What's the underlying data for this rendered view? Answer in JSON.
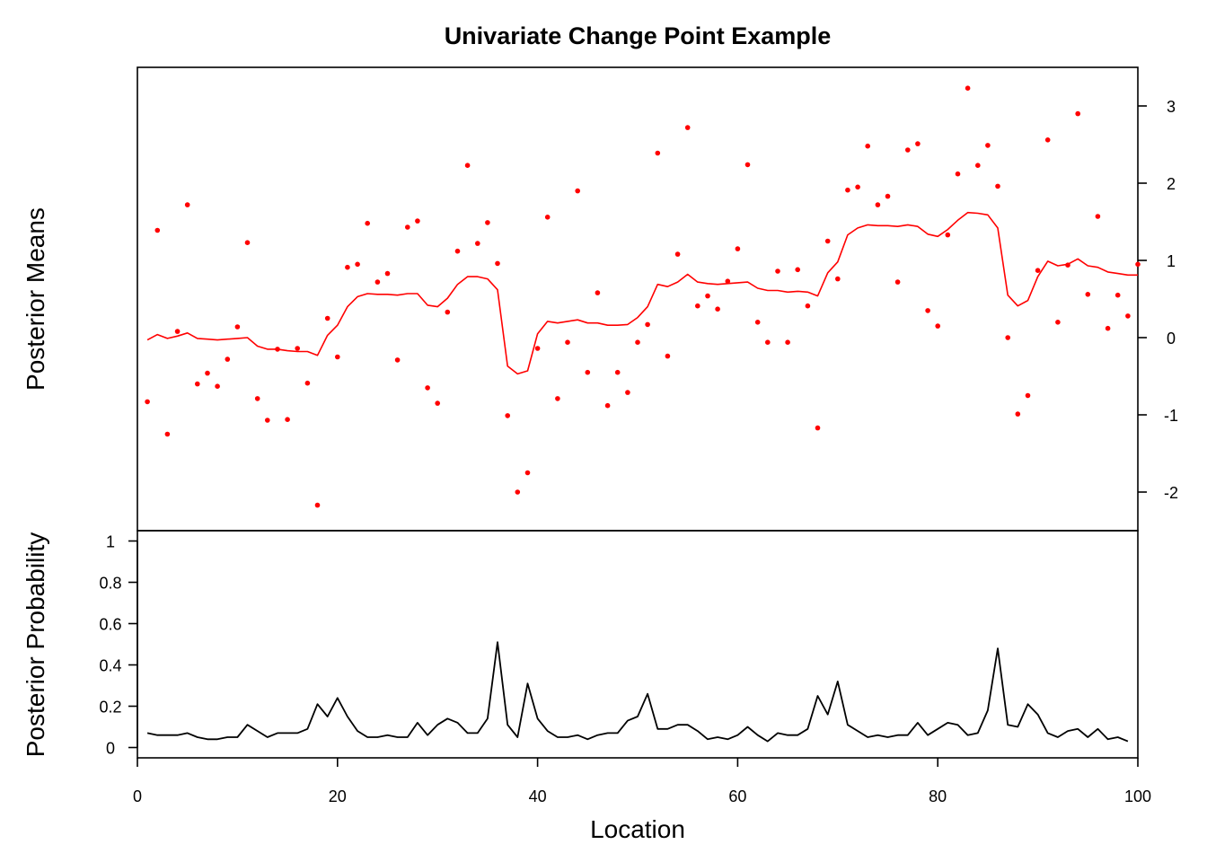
{
  "chart_data": [
    {
      "type": "scatter",
      "title": "Univariate Change Point Example",
      "ylabel": "Posterior Means",
      "xlabel": "",
      "xlim": [
        0,
        100
      ],
      "ylim": [
        -2.5,
        3.5
      ],
      "y_axis_side": "right",
      "yticks": [
        -2,
        -1,
        0,
        1,
        2,
        3
      ],
      "colors": {
        "points": "#ff0000",
        "line": "#ff0000"
      },
      "series": [
        {
          "kind": "points",
          "x": [
            1,
            2,
            3,
            4,
            5,
            6,
            7,
            8,
            9,
            10,
            11,
            12,
            13,
            14,
            15,
            16,
            17,
            18,
            19,
            20,
            21,
            22,
            23,
            24,
            25,
            26,
            27,
            28,
            29,
            30,
            31,
            32,
            33,
            34,
            35,
            36,
            37,
            38,
            39,
            40,
            41,
            42,
            43,
            44,
            45,
            46,
            47,
            48,
            49,
            50,
            51,
            52,
            53,
            54,
            55,
            56,
            57,
            58,
            59,
            60,
            61,
            62,
            63,
            64,
            65,
            66,
            67,
            68,
            69,
            70,
            71,
            72,
            73,
            74,
            75,
            76,
            77,
            78,
            79,
            80,
            81,
            82,
            83,
            84,
            85,
            86,
            87,
            88,
            89,
            90,
            91,
            92,
            93,
            94,
            95,
            96,
            97,
            98,
            99,
            100
          ],
          "y": [
            -0.83,
            1.39,
            -1.25,
            0.08,
            1.72,
            -0.6,
            -0.46,
            -0.63,
            -0.28,
            0.14,
            1.23,
            -0.79,
            -1.07,
            -0.15,
            -1.06,
            -0.14,
            -0.59,
            -2.17,
            0.25,
            -0.25,
            0.91,
            0.95,
            1.48,
            0.72,
            0.83,
            -0.29,
            1.43,
            1.51,
            -0.65,
            -0.85,
            0.33,
            1.12,
            2.23,
            1.22,
            1.49,
            0.96,
            -1.01,
            -2.0,
            -1.75,
            -0.14,
            1.56,
            -0.79,
            -0.06,
            1.9,
            -0.45,
            0.58,
            -0.88,
            -0.45,
            -0.71,
            -0.06,
            0.17,
            2.39,
            -0.24,
            1.08,
            2.72,
            0.41,
            0.54,
            0.37,
            0.73,
            1.15,
            2.24,
            0.2,
            -0.06,
            0.86,
            -0.06,
            0.88,
            0.41,
            -1.17,
            1.25,
            0.76,
            1.91,
            1.95,
            2.48,
            1.72,
            1.83,
            0.72,
            2.43,
            2.51,
            0.35,
            0.15,
            1.33,
            2.12,
            3.23,
            2.23,
            2.49,
            1.96,
            0.0,
            -0.99,
            -0.75,
            0.87,
            2.56,
            0.2,
            0.94,
            2.9,
            0.56,
            1.57,
            0.12,
            0.55,
            0.28,
            0.95
          ]
        },
        {
          "kind": "line",
          "x": [
            1,
            2,
            3,
            4,
            5,
            6,
            7,
            8,
            9,
            10,
            11,
            12,
            13,
            14,
            15,
            16,
            17,
            18,
            19,
            20,
            21,
            22,
            23,
            24,
            25,
            26,
            27,
            28,
            29,
            30,
            31,
            32,
            33,
            34,
            35,
            36,
            37,
            38,
            39,
            40,
            41,
            42,
            43,
            44,
            45,
            46,
            47,
            48,
            49,
            50,
            51,
            52,
            53,
            54,
            55,
            56,
            57,
            58,
            59,
            60,
            61,
            62,
            63,
            64,
            65,
            66,
            67,
            68,
            69,
            70,
            71,
            72,
            73,
            74,
            75,
            76,
            77,
            78,
            79,
            80,
            81,
            82,
            83,
            84,
            85,
            86,
            87,
            88,
            89,
            90,
            91,
            92,
            93,
            94,
            95,
            96,
            97,
            98,
            99,
            100
          ],
          "y": [
            -0.03,
            0.04,
            -0.01,
            0.02,
            0.06,
            -0.01,
            -0.02,
            -0.03,
            -0.02,
            -0.01,
            0.0,
            -0.11,
            -0.15,
            -0.15,
            -0.17,
            -0.18,
            -0.18,
            -0.23,
            0.03,
            0.16,
            0.4,
            0.53,
            0.57,
            0.56,
            0.56,
            0.55,
            0.57,
            0.57,
            0.42,
            0.4,
            0.51,
            0.69,
            0.79,
            0.79,
            0.76,
            0.62,
            -0.37,
            -0.47,
            -0.43,
            0.05,
            0.21,
            0.19,
            0.21,
            0.23,
            0.19,
            0.19,
            0.16,
            0.16,
            0.17,
            0.26,
            0.4,
            0.69,
            0.66,
            0.72,
            0.82,
            0.72,
            0.7,
            0.69,
            0.7,
            0.71,
            0.72,
            0.64,
            0.61,
            0.61,
            0.59,
            0.6,
            0.59,
            0.54,
            0.84,
            0.98,
            1.33,
            1.42,
            1.46,
            1.45,
            1.45,
            1.44,
            1.46,
            1.44,
            1.34,
            1.31,
            1.4,
            1.52,
            1.62,
            1.61,
            1.59,
            1.42,
            0.55,
            0.41,
            0.48,
            0.79,
            0.99,
            0.93,
            0.95,
            1.02,
            0.93,
            0.91,
            0.85,
            0.83,
            0.81,
            0.81
          ]
        }
      ]
    },
    {
      "type": "line",
      "title": "",
      "ylabel": "Posterior Probability",
      "xlabel": "Location",
      "xlim": [
        0,
        100
      ],
      "ylim": [
        -0.05,
        1.05
      ],
      "yticks": [
        0,
        0.2,
        0.4,
        0.6,
        0.8,
        1
      ],
      "ytick_labels": [
        "0",
        "0.2",
        "0.4",
        "0.6",
        "0.8",
        "1"
      ],
      "xticks": [
        0,
        20,
        40,
        60,
        80,
        100
      ],
      "xtick_labels": [
        "0",
        "20",
        "40",
        "60",
        "80",
        "100"
      ],
      "colors": {
        "line": "#000000"
      },
      "series": [
        {
          "x": [
            1,
            2,
            3,
            4,
            5,
            6,
            7,
            8,
            9,
            10,
            11,
            12,
            13,
            14,
            15,
            16,
            17,
            18,
            19,
            20,
            21,
            22,
            23,
            24,
            25,
            26,
            27,
            28,
            29,
            30,
            31,
            32,
            33,
            34,
            35,
            36,
            37,
            38,
            39,
            40,
            41,
            42,
            43,
            44,
            45,
            46,
            47,
            48,
            49,
            50,
            51,
            52,
            53,
            54,
            55,
            56,
            57,
            58,
            59,
            60,
            61,
            62,
            63,
            64,
            65,
            66,
            67,
            68,
            69,
            70,
            71,
            72,
            73,
            74,
            75,
            76,
            77,
            78,
            79,
            80,
            81,
            82,
            83,
            84,
            85,
            86,
            87,
            88,
            89,
            90,
            91,
            92,
            93,
            94,
            95,
            96,
            97,
            98,
            99
          ],
          "values": [
            0.07,
            0.06,
            0.06,
            0.06,
            0.07,
            0.05,
            0.04,
            0.04,
            0.05,
            0.05,
            0.11,
            0.08,
            0.05,
            0.07,
            0.07,
            0.07,
            0.09,
            0.21,
            0.15,
            0.24,
            0.15,
            0.08,
            0.05,
            0.05,
            0.06,
            0.05,
            0.05,
            0.12,
            0.06,
            0.11,
            0.14,
            0.12,
            0.07,
            0.07,
            0.14,
            0.51,
            0.11,
            0.05,
            0.31,
            0.14,
            0.08,
            0.05,
            0.05,
            0.06,
            0.04,
            0.06,
            0.07,
            0.07,
            0.13,
            0.15,
            0.26,
            0.09,
            0.09,
            0.11,
            0.11,
            0.08,
            0.04,
            0.05,
            0.04,
            0.06,
            0.1,
            0.06,
            0.03,
            0.07,
            0.06,
            0.06,
            0.09,
            0.25,
            0.16,
            0.32,
            0.11,
            0.08,
            0.05,
            0.06,
            0.05,
            0.06,
            0.06,
            0.12,
            0.06,
            0.09,
            0.12,
            0.11,
            0.06,
            0.07,
            0.18,
            0.48,
            0.11,
            0.1,
            0.21,
            0.16,
            0.07,
            0.05,
            0.08,
            0.09,
            0.05,
            0.09,
            0.04,
            0.05,
            0.03
          ]
        }
      ]
    }
  ]
}
